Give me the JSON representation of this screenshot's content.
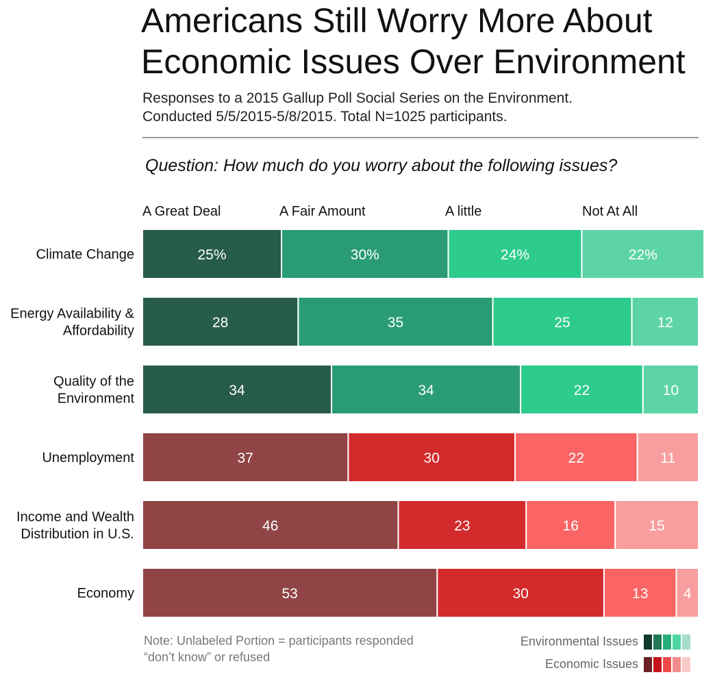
{
  "title_lines": [
    "Americans Still Worry More About",
    "Economic Issues Over Environment"
  ],
  "subtitle_lines": [
    "Responses to a 2015 Gallup Poll Social Series on the Environment.",
    "Conducted 5/5/2015-5/8/2015. Total N=1025 participants."
  ],
  "question": "Question: How much do you worry about the following issues?",
  "note_lines": [
    "Note: Unlabeled Portion = participants responded",
    "“don’t know” or refused"
  ],
  "legend": {
    "environmental_label": "Environmental Issues",
    "economic_label": "Economic Issues",
    "environmental_swatches": [
      "#0e3b2c",
      "#1f7a55",
      "#25b07a",
      "#4fd6a0",
      "#a6dccd"
    ],
    "economic_swatches": [
      "#6b2124",
      "#c4121a",
      "#ef4a4a",
      "#f28b8b",
      "#f8c9c6"
    ]
  },
  "chart_data": {
    "type": "bar",
    "orientation": "horizontal",
    "stacked": true,
    "xlim": [
      0,
      100
    ],
    "category_labels": [
      "A Great Deal",
      "A Fair Amount",
      "A little",
      "Not At All"
    ],
    "colors": {
      "environmental": [
        "#275c4a",
        "#2a9c74",
        "#2dcb8c",
        "#5dd4a8",
        "#b7e3d5"
      ],
      "economic": [
        "#904446",
        "#d32a2c",
        "#fa6464",
        "#f89e9e",
        "#fde0de"
      ]
    },
    "rows": [
      {
        "label_lines": [
          "Climate Change"
        ],
        "group": "environmental",
        "values": [
          25,
          30,
          24,
          22
        ],
        "value_labels": [
          "25%",
          "30%",
          "24%",
          "22%"
        ]
      },
      {
        "label_lines": [
          "Energy Availability &",
          "Affordability"
        ],
        "group": "environmental",
        "values": [
          28,
          35,
          25,
          12
        ],
        "value_labels": [
          "28",
          "35",
          "25",
          "12"
        ]
      },
      {
        "label_lines": [
          "Quality of the",
          "Environment"
        ],
        "group": "environmental",
        "values": [
          34,
          34,
          22,
          10
        ],
        "value_labels": [
          "34",
          "34",
          "22",
          "10"
        ]
      },
      {
        "label_lines": [
          "Unemployment"
        ],
        "group": "economic",
        "values": [
          37,
          30,
          22,
          11
        ],
        "value_labels": [
          "37",
          "30",
          "22",
          "11"
        ]
      },
      {
        "label_lines": [
          "Income and Wealth",
          "Distribution in U.S."
        ],
        "group": "economic",
        "values": [
          46,
          23,
          16,
          15
        ],
        "value_labels": [
          "46",
          "23",
          "16",
          "15"
        ]
      },
      {
        "label_lines": [
          "Economy"
        ],
        "group": "economic",
        "values": [
          53,
          30,
          13,
          4
        ],
        "value_labels": [
          "53",
          "30",
          "13",
          "4"
        ]
      }
    ]
  }
}
